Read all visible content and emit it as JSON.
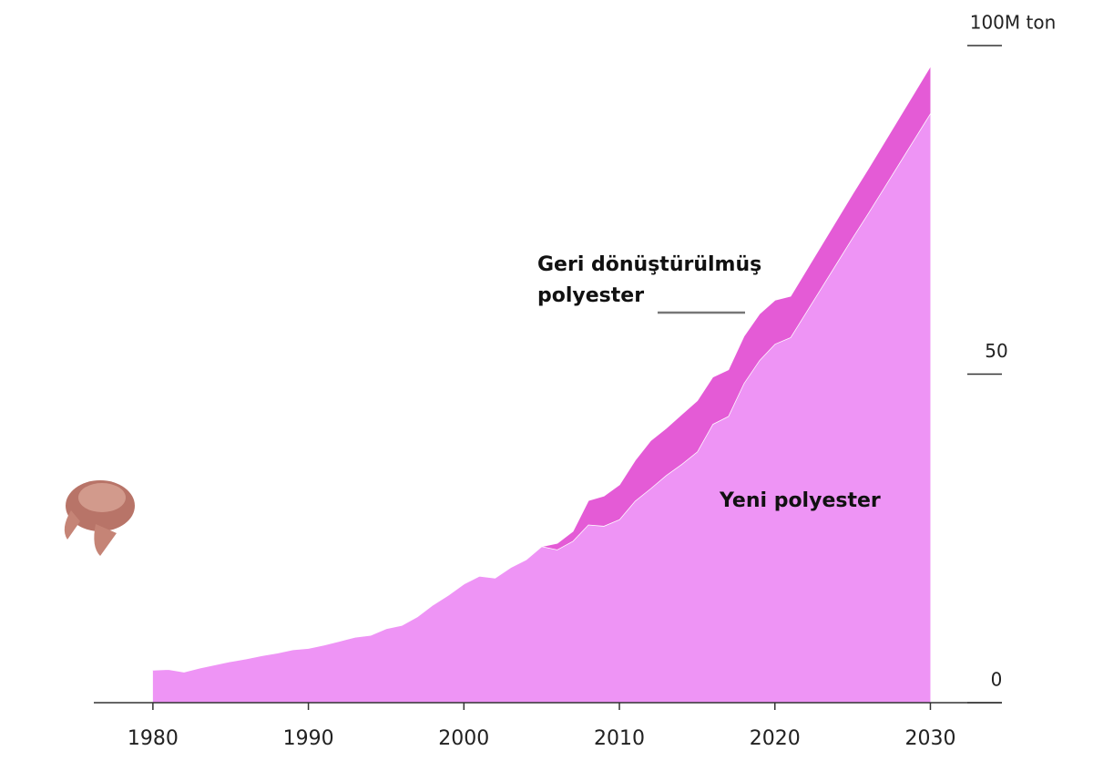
{
  "chart_data": {
    "type": "stacked_area",
    "x": [
      1980,
      1981,
      1982,
      1983,
      1984,
      1985,
      1986,
      1987,
      1988,
      1989,
      1990,
      1991,
      1992,
      1993,
      1994,
      1995,
      1996,
      1997,
      1998,
      1999,
      2000,
      2001,
      2002,
      2003,
      2004,
      2005,
      2006,
      2007,
      2008,
      2009,
      2010,
      2011,
      2012,
      2013,
      2014,
      2015,
      2016,
      2017,
      2018,
      2019,
      2020,
      2021,
      2022,
      2023,
      2024,
      2025,
      2026,
      2027,
      2028,
      2029,
      2030
    ],
    "series": [
      {
        "name": "Yeni polyester",
        "color": "#ee94f5",
        "values": [
          5.0,
          5.1,
          4.7,
          5.3,
          5.8,
          6.3,
          6.7,
          7.2,
          7.6,
          8.1,
          8.3,
          8.8,
          9.4,
          10,
          10.3,
          11.3,
          11.8,
          13.1,
          14.9,
          16.4,
          18.1,
          19.3,
          19,
          20.6,
          21.8,
          23.8,
          23.3,
          24.6,
          27.1,
          26.9,
          27.9,
          30.7,
          32.6,
          34.6,
          36.3,
          38.2,
          42.4,
          43.6,
          48.6,
          52.1,
          54.6,
          55.6,
          59.4,
          63.2,
          67,
          70.8,
          74.5,
          78.3,
          82.1,
          85.9,
          89.7
        ]
      },
      {
        "name": "Geri dönüştürülmüş polyester",
        "color": "#e45bd6",
        "values": [
          null,
          null,
          null,
          null,
          null,
          null,
          null,
          null,
          null,
          null,
          null,
          null,
          null,
          null,
          null,
          null,
          null,
          null,
          null,
          null,
          null,
          null,
          null,
          null,
          null,
          0,
          1.0,
          1.5,
          3.7,
          4.6,
          5.3,
          6.2,
          7.3,
          7.2,
          7.6,
          7.8,
          7.2,
          7.1,
          7.2,
          7.1,
          6.7,
          6.3,
          6.4,
          6.5,
          6.6,
          6.7,
          6.8,
          6.9,
          7.0,
          7.1,
          7.2
        ]
      }
    ],
    "xlim": [
      1976.2,
      2034.6
    ],
    "xticks": [
      1980,
      1990,
      2000,
      2010,
      2020,
      2030
    ],
    "ylim": [
      0,
      100
    ],
    "yticks": [
      0,
      50,
      {
        "value": 100,
        "label": "100M ton"
      }
    ]
  }
}
